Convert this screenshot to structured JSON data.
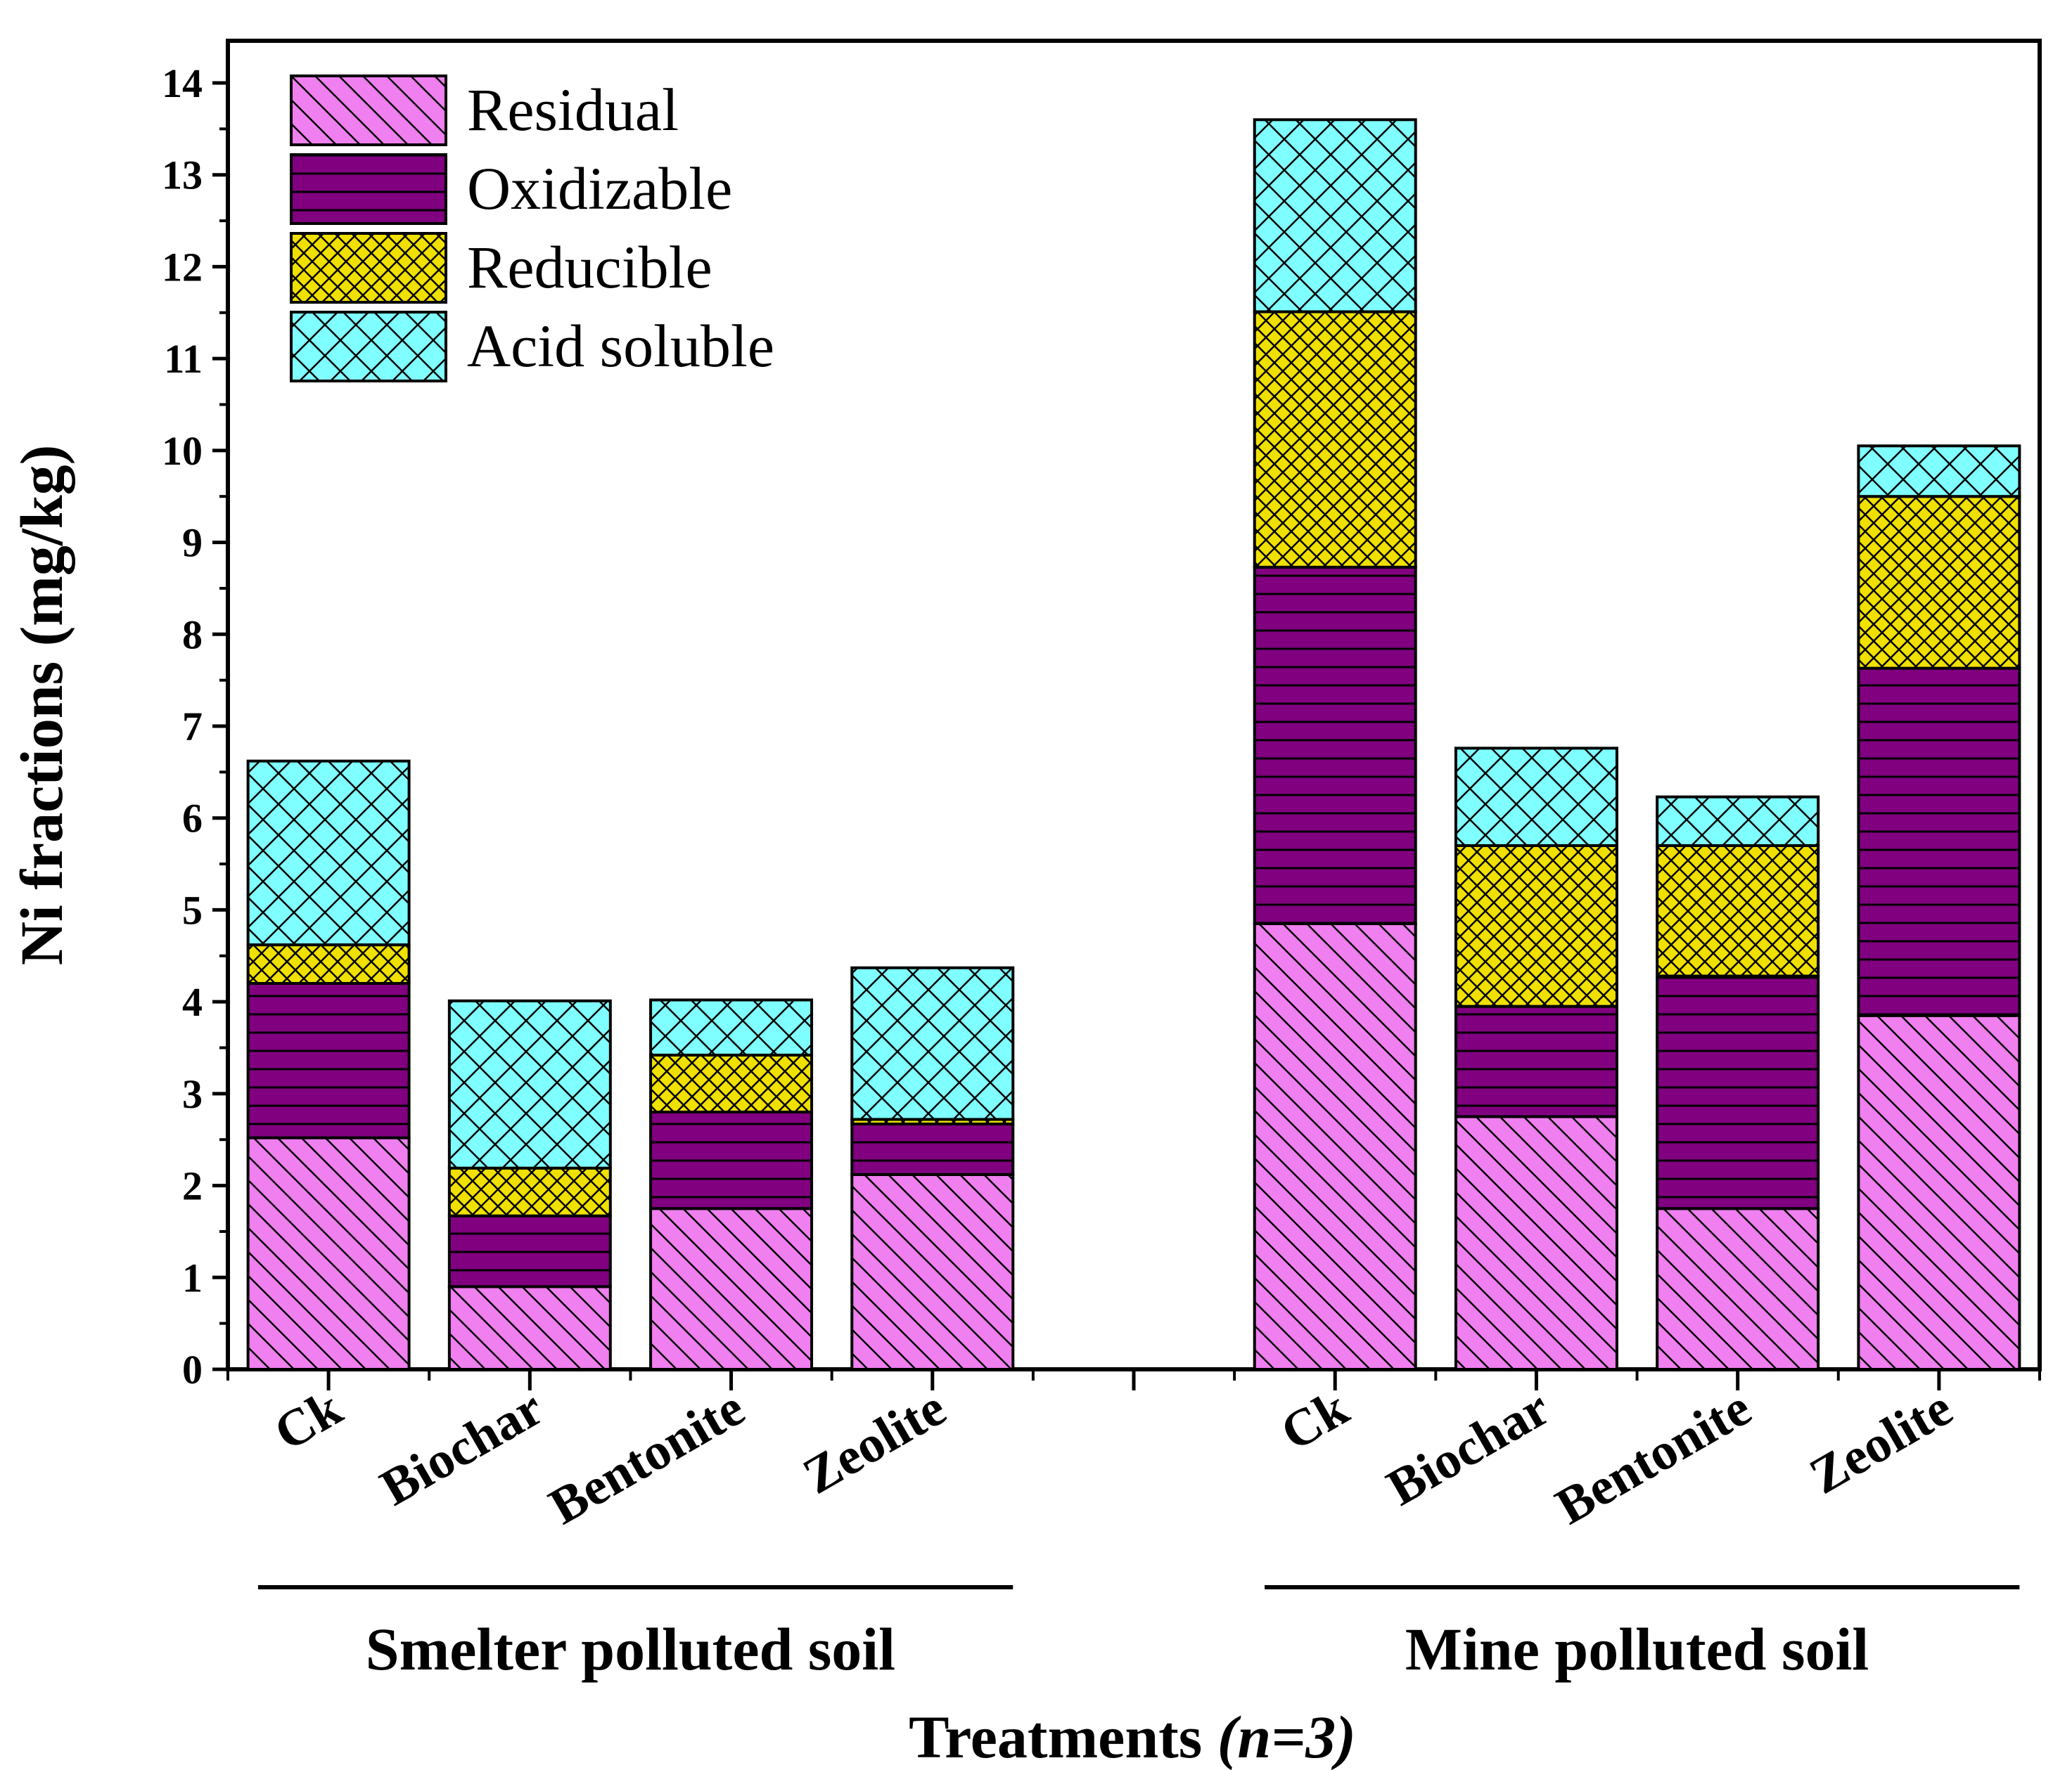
{
  "chart_data": {
    "type": "bar",
    "stacked": true,
    "ylabel": "Ni fractions (mg/kg)",
    "xlabel_main": "Treatments ",
    "xlabel_italic": "(n=3)",
    "ylim": [
      0,
      14
    ],
    "yticks": [
      0,
      1,
      2,
      3,
      4,
      5,
      6,
      7,
      8,
      9,
      10,
      11,
      12,
      13,
      14
    ],
    "grid": false,
    "legend_position": "top-left",
    "groups": [
      {
        "label": "Smelter polluted soil",
        "categories": [
          "Ck",
          "Biochar",
          "Bentonite",
          "Zeolite"
        ]
      },
      {
        "label": "Mine polluted soil",
        "categories": [
          "Ck",
          "Biochar",
          "Bentonite",
          "Zeolite"
        ]
      }
    ],
    "series": [
      {
        "name": "Residual",
        "color": "#f07ff0",
        "pattern": "diagonal",
        "values": [
          2.52,
          0.9,
          1.75,
          2.12,
          4.85,
          2.75,
          1.75,
          3.85
        ]
      },
      {
        "name": "Oxidizable",
        "color": "#800080",
        "pattern": "horizontal",
        "values": [
          1.68,
          0.77,
          1.05,
          0.55,
          3.88,
          1.2,
          2.53,
          3.78
        ]
      },
      {
        "name": "Reducible",
        "color": "#f0e000",
        "pattern": "crosshatch",
        "values": [
          0.42,
          0.52,
          0.62,
          0.05,
          2.78,
          1.75,
          1.42,
          1.87
        ]
      },
      {
        "name": "Acid soluble",
        "color": "#7fffff",
        "pattern": "crosshatch-wide",
        "values": [
          2.0,
          1.82,
          0.6,
          1.65,
          2.09,
          1.06,
          0.53,
          0.55
        ]
      }
    ]
  }
}
